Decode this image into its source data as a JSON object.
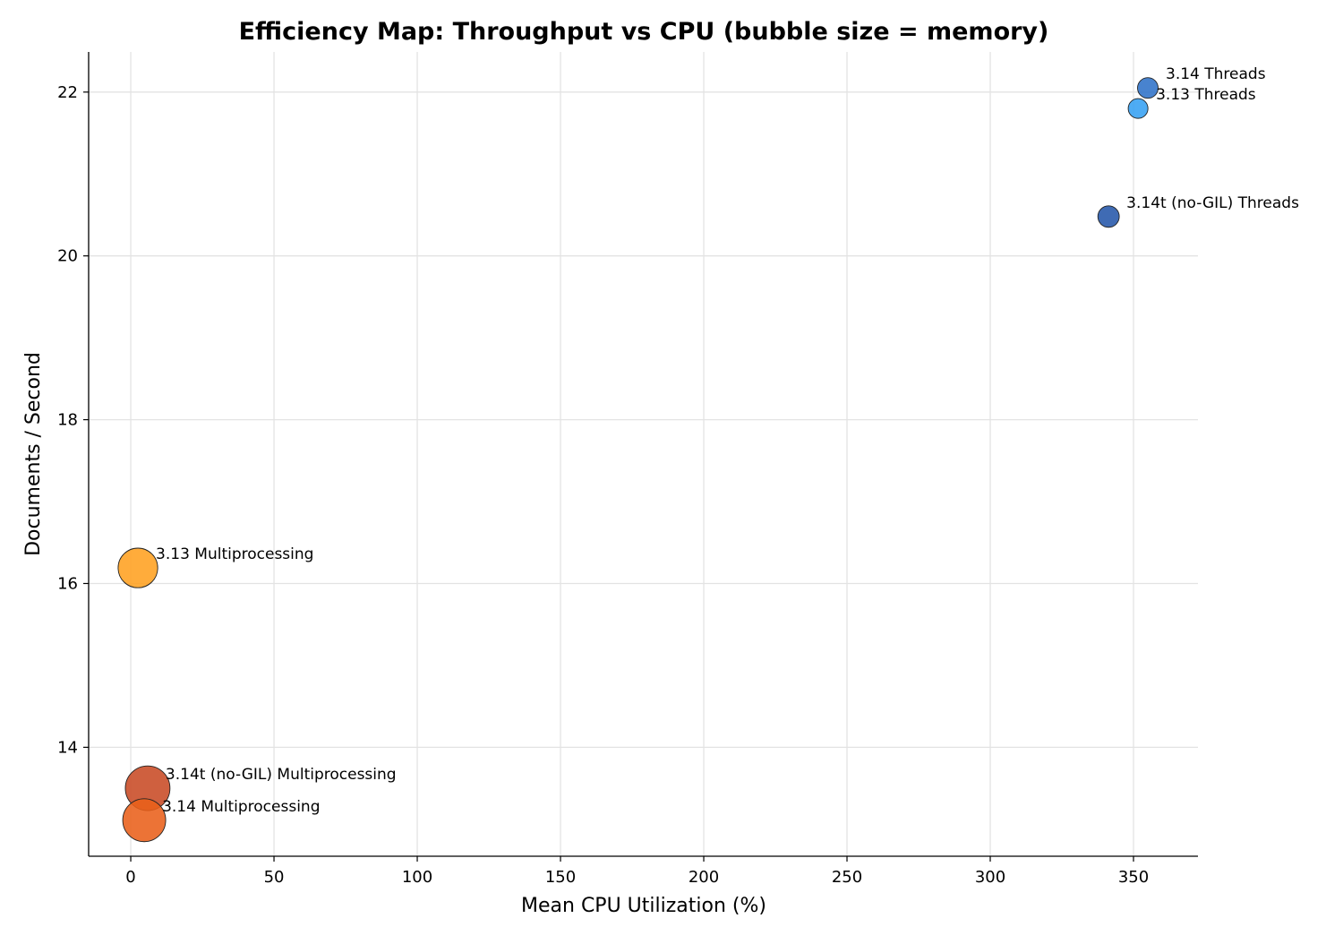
{
  "chart_data": {
    "type": "scatter",
    "title": "Efficiency Map: Throughput vs CPU (bubble size = memory)",
    "xlabel": "Mean CPU Utilization (%)",
    "ylabel": "Documents / Second",
    "xlim": [
      -14.7,
      372.5
    ],
    "ylim": [
      12.67,
      22.49
    ],
    "xticks": [
      0,
      50,
      100,
      150,
      200,
      250,
      300,
      350
    ],
    "yticks": [
      14,
      16,
      18,
      20,
      22
    ],
    "grid": true,
    "points": [
      {
        "label": "3.14 Threads",
        "x": 355.0,
        "y": 22.05,
        "relative_size": 1.0,
        "color": "#2f72c8"
      },
      {
        "label": "3.13 Threads",
        "x": 351.6,
        "y": 21.8,
        "relative_size": 0.92,
        "color": "#36a0f2"
      },
      {
        "label": "3.14t (no-GIL) Threads",
        "x": 341.3,
        "y": 20.48,
        "relative_size": 1.08,
        "color": "#2456aa"
      },
      {
        "label": "3.13 Multiprocessing",
        "x": 2.5,
        "y": 16.19,
        "relative_size": 3.7,
        "color": "#ffa020"
      },
      {
        "label": "3.14t (no-GIL) Multiprocessing",
        "x": 5.9,
        "y": 13.5,
        "relative_size": 4.7,
        "color": "#c84a24"
      },
      {
        "label": "3.14 Multiprocessing",
        "x": 4.7,
        "y": 13.11,
        "relative_size": 4.35,
        "color": "#e9601a"
      }
    ]
  }
}
